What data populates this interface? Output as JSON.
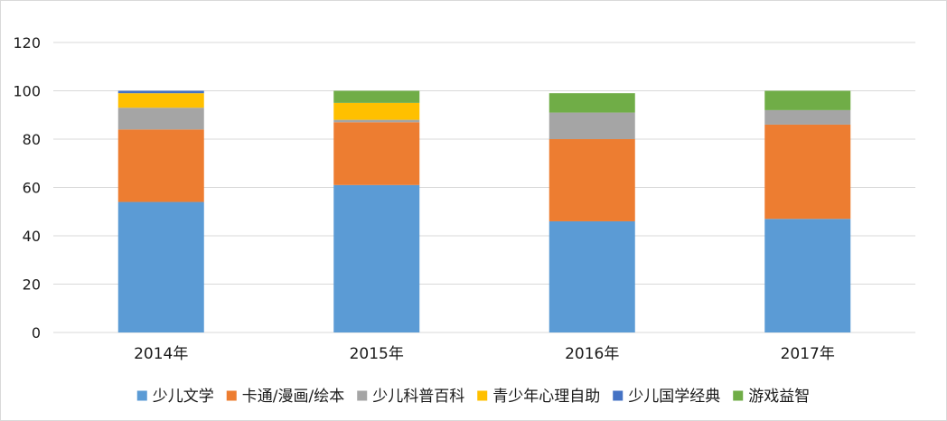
{
  "chart_data": {
    "type": "bar",
    "stacked": true,
    "categories": [
      "2014年",
      "2015年",
      "2016年",
      "2017年"
    ],
    "ylim": [
      0,
      120
    ],
    "yticks": [
      0,
      20,
      40,
      60,
      80,
      100,
      120
    ],
    "grid": true,
    "legend_position": "bottom",
    "series": [
      {
        "name": "少儿文学",
        "color": "#5B9BD5",
        "values": [
          54,
          61,
          46,
          47
        ]
      },
      {
        "name": "卡通/漫画/绘本",
        "color": "#ED7D31",
        "values": [
          30,
          26,
          34,
          39
        ]
      },
      {
        "name": "少儿科普百科",
        "color": "#A5A5A5",
        "values": [
          9,
          1,
          11,
          6
        ]
      },
      {
        "name": "青少年心理自助",
        "color": "#FFC000",
        "values": [
          6,
          7,
          0,
          0
        ]
      },
      {
        "name": "少儿国学经典",
        "color": "#4472C4",
        "values": [
          1,
          0,
          0,
          0
        ]
      },
      {
        "name": "游戏益智",
        "color": "#70AD47",
        "values": [
          0,
          5,
          8,
          8
        ]
      }
    ]
  }
}
